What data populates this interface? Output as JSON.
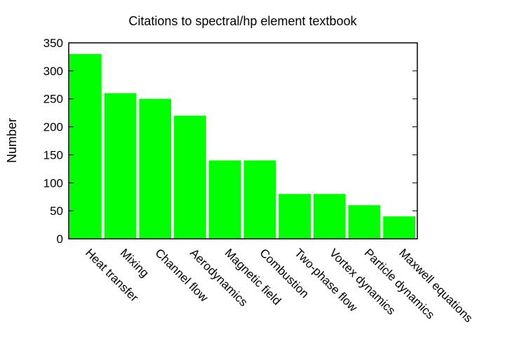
{
  "chart_data": {
    "type": "bar",
    "title": "Citations to spectral/hp element textbook",
    "xlabel": "",
    "ylabel": "Number",
    "categories": [
      "Heat transfer",
      "Mixing",
      "Channel flow",
      "Aerodynamics",
      "Magnetic field",
      "Combustion",
      "Two-phase flow",
      "Vortex dynamics",
      "Particle dynamics",
      "Maxwell equations"
    ],
    "values": [
      330,
      260,
      250,
      220,
      140,
      140,
      80,
      80,
      60,
      40
    ],
    "ylim": [
      0,
      350
    ],
    "yticks": [
      0,
      50,
      100,
      150,
      200,
      250,
      300,
      350
    ],
    "grid": false,
    "legend": "none",
    "bar_color": "#00ff00"
  }
}
